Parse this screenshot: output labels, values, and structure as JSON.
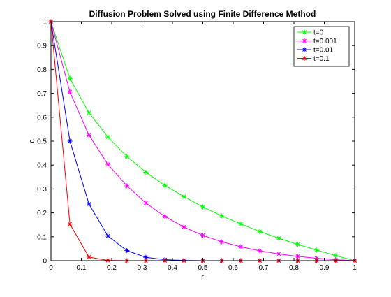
{
  "chart_data": {
    "type": "line",
    "title": "Diffusion Problem Solved using Finite Difference Method",
    "xlabel": "r",
    "ylabel": "c",
    "xlim": [
      0,
      1
    ],
    "ylim": [
      0,
      1
    ],
    "xticks": [
      "0",
      "0.1",
      "0.2",
      "0.3",
      "0.4",
      "0.5",
      "0.6",
      "0.7",
      "0.8",
      "0.9",
      "1"
    ],
    "yticks": [
      "0",
      "0.1",
      "0.2",
      "0.3",
      "0.4",
      "0.5",
      "0.6",
      "0.7",
      "0.8",
      "0.9",
      "1"
    ],
    "grid": false,
    "legend_position": "top-right",
    "x": [
      0,
      0.0625,
      0.125,
      0.1875,
      0.25,
      0.3125,
      0.375,
      0.4375,
      0.5,
      0.5625,
      0.625,
      0.6875,
      0.75,
      0.8125,
      0.875,
      0.9375,
      1
    ],
    "series": [
      {
        "name": "t=0",
        "color": "#00ff00",
        "marker": "asterisk",
        "values": [
          1,
          0.762,
          0.619,
          0.517,
          0.436,
          0.37,
          0.315,
          0.268,
          0.225,
          0.187,
          0.154,
          0.122,
          0.094,
          0.068,
          0.044,
          0.021,
          0
        ]
      },
      {
        "name": "t=0.001",
        "color": "#ff00ff",
        "marker": "asterisk",
        "values": [
          1,
          0.705,
          0.525,
          0.403,
          0.313,
          0.241,
          0.185,
          0.141,
          0.106,
          0.079,
          0.058,
          0.041,
          0.028,
          0.018,
          0.01,
          0.004,
          0
        ]
      },
      {
        "name": "t=0.01",
        "color": "#0000ff",
        "marker": "asterisk",
        "values": [
          1,
          0.5,
          0.237,
          0.103,
          0.042,
          0.014,
          0.004,
          0.001,
          0,
          0,
          0,
          0,
          0,
          0,
          0,
          0,
          0
        ]
      },
      {
        "name": "t=0.1",
        "color": "#ff0000",
        "marker": "asterisk",
        "values": [
          1,
          0.153,
          0.015,
          0.001,
          0,
          0,
          0,
          0,
          0,
          0,
          0,
          0,
          0,
          0,
          0,
          0,
          0
        ]
      }
    ]
  }
}
